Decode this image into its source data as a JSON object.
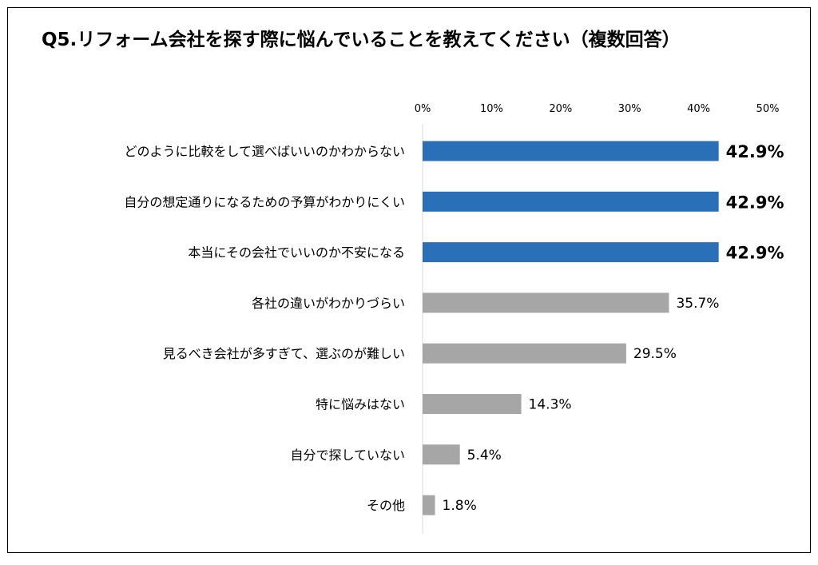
{
  "title": "Q5.リフォーム会社を探す際に悩んでいることを教えてください（複数回答）",
  "chart_data": {
    "type": "bar",
    "orientation": "horizontal",
    "xlim": [
      0,
      50
    ],
    "ticks": [
      0,
      10,
      20,
      30,
      40,
      50
    ],
    "tick_labels": [
      "0%",
      "10%",
      "20%",
      "30%",
      "40%",
      "50%"
    ],
    "tick_position": "top",
    "grid": false,
    "categories": [
      "どのように比較をして選べばいいのかわからない",
      "自分の想定通りになるための予算がわかりにくい",
      "本当にその会社でいいのか不安になる",
      "各社の違いがわかりづらい",
      "見るべき会社が多すぎて、選ぶのが難しい",
      "特に悩みはない",
      "自分で探していない",
      "その他"
    ],
    "values": [
      42.9,
      42.9,
      42.9,
      35.7,
      29.5,
      14.3,
      5.4,
      1.8
    ],
    "value_labels": [
      "42.9%",
      "42.9%",
      "42.9%",
      "35.7%",
      "29.5%",
      "14.3%",
      "5.4%",
      "1.8%"
    ],
    "highlighted": [
      true,
      true,
      true,
      false,
      false,
      false,
      false,
      false
    ],
    "colors": {
      "highlight": "#2970B9",
      "default": "#A6A6A6"
    }
  }
}
